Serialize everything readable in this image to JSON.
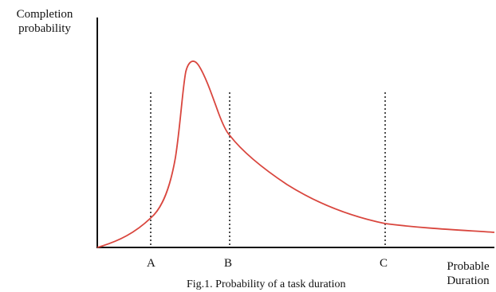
{
  "figure": {
    "y_axis_label_line1": "Completion",
    "y_axis_label_line2": "probability",
    "x_axis_label_line1": "Probable",
    "x_axis_label_line2": "Duration",
    "markers": [
      "A",
      "B",
      "C"
    ],
    "caption": "Fig.1. Probability  of a task duration",
    "curve_color": "#d9463e",
    "axis_color": "#111111",
    "marker_line_style": "dotted"
  }
}
